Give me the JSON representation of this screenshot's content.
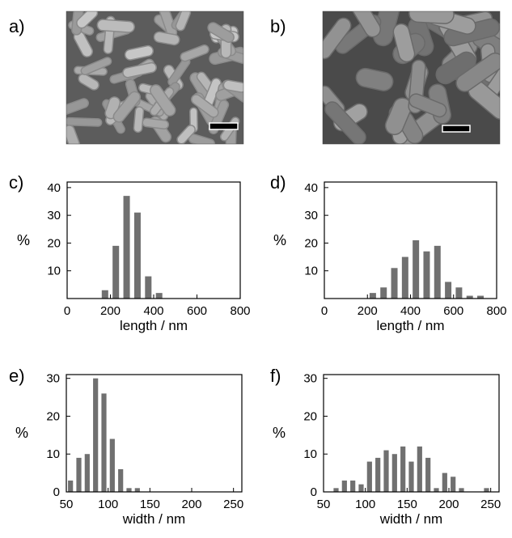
{
  "panels": [
    {
      "id": "a",
      "label": "a)",
      "kind": "micrograph",
      "surface": "sparse-rods"
    },
    {
      "id": "b",
      "label": "b)",
      "kind": "micrograph",
      "surface": "dense-rods"
    }
  ],
  "chart_data": [
    {
      "panel": "c)",
      "type": "bar",
      "xlabel": "length / nm",
      "ylabel": "%",
      "xlim": [
        0,
        800
      ],
      "ylim": [
        0,
        42
      ],
      "xticks": [
        0,
        200,
        400,
        600,
        800
      ],
      "yticks": [
        10,
        20,
        30,
        40
      ],
      "bar_color": "#707070",
      "x": [
        175,
        225,
        275,
        325,
        375,
        425
      ],
      "values": [
        3,
        19,
        37,
        31,
        8,
        2
      ]
    },
    {
      "panel": "d)",
      "type": "bar",
      "xlabel": "length / nm",
      "ylabel": "%",
      "xlim": [
        0,
        800
      ],
      "ylim": [
        0,
        42
      ],
      "xticks": [
        0,
        200,
        400,
        600,
        800
      ],
      "yticks": [
        10,
        20,
        30,
        40
      ],
      "bar_color": "#707070",
      "x": [
        225,
        275,
        325,
        375,
        425,
        475,
        525,
        575,
        625,
        675,
        725
      ],
      "values": [
        2,
        4,
        11,
        15,
        21,
        17,
        19,
        6,
        4,
        1,
        1
      ]
    },
    {
      "panel": "e)",
      "type": "bar",
      "xlabel": "width / nm",
      "ylabel": "%",
      "xlim": [
        50,
        260
      ],
      "ylim": [
        0,
        31
      ],
      "xticks": [
        50,
        100,
        150,
        200,
        250
      ],
      "yticks": [
        0,
        10,
        20,
        30
      ],
      "bar_color": "#707070",
      "x": [
        55,
        65,
        75,
        85,
        95,
        105,
        115,
        125,
        135
      ],
      "values": [
        3,
        9,
        10,
        30,
        26,
        14,
        6,
        1,
        1
      ]
    },
    {
      "panel": "f)",
      "type": "bar",
      "xlabel": "width / nm",
      "ylabel": "%",
      "xlim": [
        50,
        260
      ],
      "ylim": [
        0,
        31
      ],
      "xticks": [
        50,
        100,
        150,
        200,
        250
      ],
      "yticks": [
        0,
        10,
        20,
        30
      ],
      "bar_color": "#707070",
      "x": [
        65,
        75,
        85,
        95,
        105,
        115,
        125,
        135,
        145,
        155,
        165,
        175,
        185,
        195,
        205,
        215,
        245
      ],
      "values": [
        1,
        3,
        3,
        2,
        8,
        9,
        11,
        10,
        12,
        8,
        12,
        9,
        1,
        5,
        4,
        1,
        1
      ]
    }
  ]
}
